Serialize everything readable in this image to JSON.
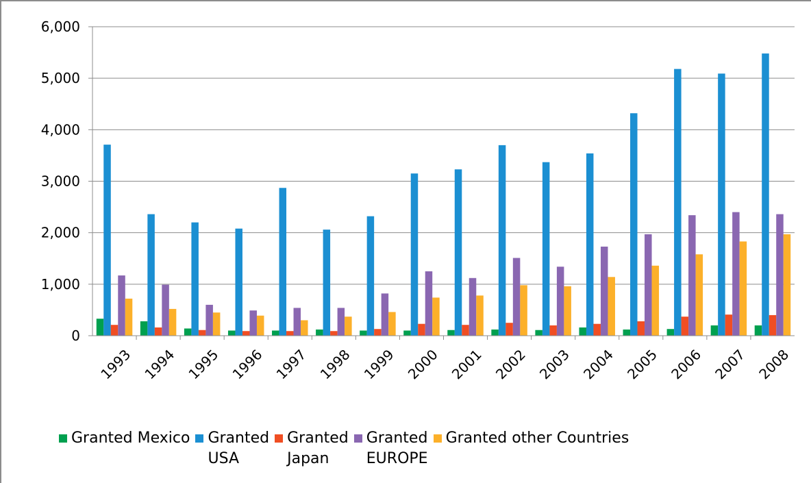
{
  "chart_data": {
    "type": "bar",
    "title": "",
    "xlabel": "",
    "ylabel": "",
    "ylim": [
      0,
      6000
    ],
    "yticks": [
      "0",
      "1,000",
      "2,000",
      "3,000",
      "4,000",
      "5,000",
      "6,000"
    ],
    "categories": [
      "1993",
      "1994",
      "1995",
      "1996",
      "1997",
      "1998",
      "1999",
      "2000",
      "2001",
      "2002",
      "2003",
      "2004",
      "2005",
      "2006",
      "2007",
      "2008"
    ],
    "grid": "horizontal",
    "legend_position": "bottom",
    "series": [
      {
        "name": "Granted Mexico",
        "color": "#00a04f",
        "values": [
          330,
          280,
          140,
          100,
          100,
          120,
          100,
          100,
          110,
          120,
          110,
          160,
          120,
          130,
          200,
          200
        ]
      },
      {
        "name": "Granted USA",
        "color": "#1b8fd2",
        "values": [
          3710,
          2360,
          2200,
          2080,
          2870,
          2060,
          2320,
          3150,
          3230,
          3700,
          3370,
          3540,
          4320,
          5180,
          5090,
          5480
        ]
      },
      {
        "name": "Granted Japan",
        "color": "#f04e23",
        "values": [
          210,
          160,
          110,
          90,
          90,
          90,
          130,
          230,
          210,
          250,
          200,
          230,
          280,
          370,
          410,
          400
        ]
      },
      {
        "name": "Granted EUROPE",
        "color": "#8a67b1",
        "values": [
          1170,
          990,
          600,
          490,
          540,
          540,
          820,
          1250,
          1120,
          1510,
          1340,
          1730,
          1970,
          2340,
          2400,
          2360
        ]
      },
      {
        "name": "Granted other Countries",
        "color": "#fcb02a",
        "values": [
          720,
          520,
          450,
          390,
          300,
          370,
          460,
          740,
          780,
          980,
          960,
          1140,
          1360,
          1580,
          1830,
          1970
        ]
      }
    ]
  },
  "legend": {
    "items": [
      {
        "lines": [
          "Granted Mexico"
        ],
        "color": "#00a04f"
      },
      {
        "lines": [
          "Granted",
          "USA"
        ],
        "color": "#1b8fd2"
      },
      {
        "lines": [
          "Granted",
          "Japan"
        ],
        "color": "#f04e23"
      },
      {
        "lines": [
          "Granted",
          "EUROPE"
        ],
        "color": "#8a67b1"
      },
      {
        "lines": [
          "Granted other Countries"
        ],
        "color": "#fcb02a"
      }
    ]
  }
}
